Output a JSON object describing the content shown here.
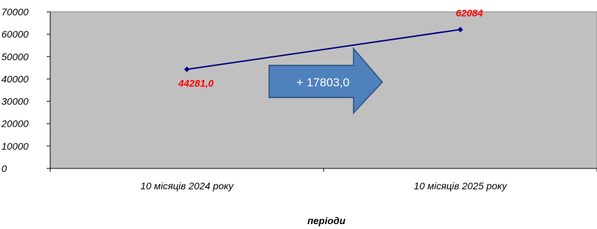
{
  "chart_data": {
    "type": "line",
    "categories": [
      "10 місяців 2024 року",
      "10 місяців 2025 року"
    ],
    "series": [
      {
        "values": [
          44281.0,
          62084
        ],
        "data_labels": [
          "44281,0",
          "62084"
        ]
      }
    ],
    "xlabel": "періоди",
    "ylabel": "",
    "ylim": [
      0,
      70000
    ],
    "yticks": [
      0,
      10000,
      20000,
      30000,
      40000,
      50000,
      60000,
      70000
    ],
    "grid": false,
    "plot_background": "#c0c0c0",
    "line_color": "#000080",
    "data_label_color": "#ff0000",
    "annotation": {
      "text": "+ 17803,0",
      "shape": "right-arrow",
      "fill": "#4f81bd",
      "border": "#385d8a"
    }
  }
}
